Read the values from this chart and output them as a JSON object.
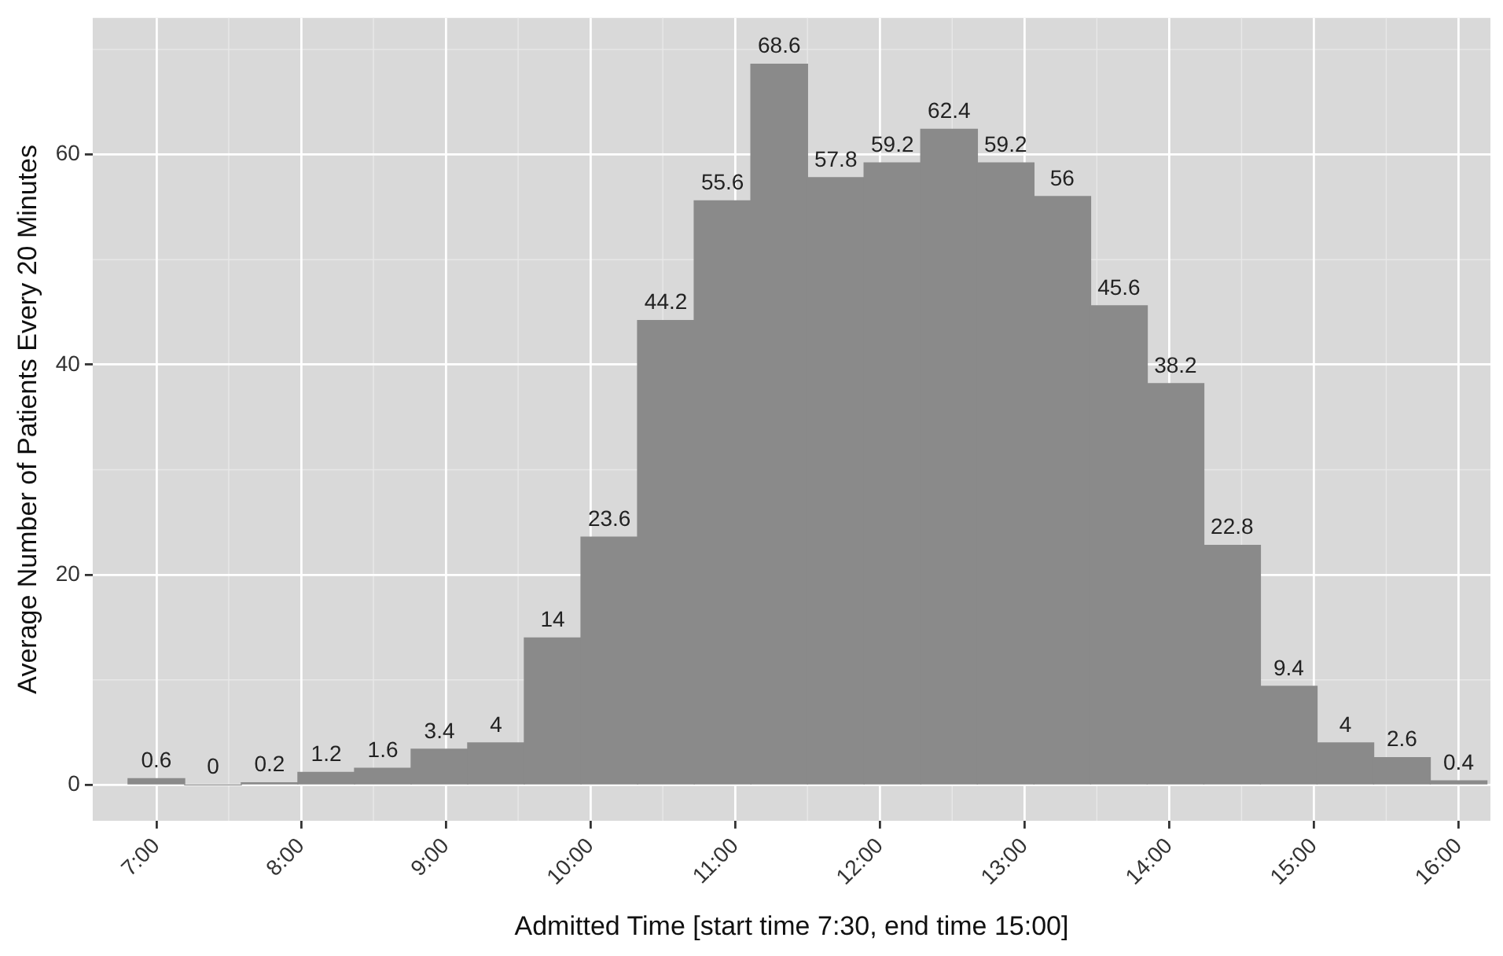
{
  "chart_data": {
    "type": "histogram",
    "xlabel": "Admitted Time [start time 7:30, end time 15:00]",
    "ylabel": "Average Number of Patients Every 20 Minutes",
    "bins": [
      6.804,
      7.196,
      7.587,
      7.978,
      8.37,
      8.761,
      9.152,
      9.543,
      9.935,
      10.326,
      10.717,
      11.109,
      11.5,
      11.891,
      12.283,
      12.674,
      13.065,
      13.457,
      13.848,
      14.239,
      14.63,
      15.022,
      15.413,
      15.804,
      16.196
    ],
    "values": [
      0.6,
      0,
      0.2,
      1.2,
      1.6,
      3.4,
      4,
      14,
      23.6,
      44.2,
      55.6,
      68.6,
      57.8,
      59.2,
      62.4,
      59.2,
      56,
      45.6,
      38.2,
      22.8,
      9.4,
      4,
      2.6,
      0.4
    ],
    "color": "#8a8a8a",
    "data_labels": true,
    "grid": true,
    "legend": false,
    "xlim": [
      6.56,
      16.22
    ],
    "xticks": [
      {
        "value": 7,
        "label": "7:00"
      },
      {
        "value": 8,
        "label": "8:00"
      },
      {
        "value": 9,
        "label": "9:00"
      },
      {
        "value": 10,
        "label": "10:00"
      },
      {
        "value": 11,
        "label": "11:00"
      },
      {
        "value": 12,
        "label": "12:00"
      },
      {
        "value": 13,
        "label": "13:00"
      },
      {
        "value": 14,
        "label": "14:00"
      },
      {
        "value": 15,
        "label": "15:00"
      },
      {
        "value": 16,
        "label": "16:00"
      }
    ],
    "ylim": [
      -3.4,
      73
    ],
    "yticks": [
      0,
      20,
      40,
      60
    ]
  }
}
